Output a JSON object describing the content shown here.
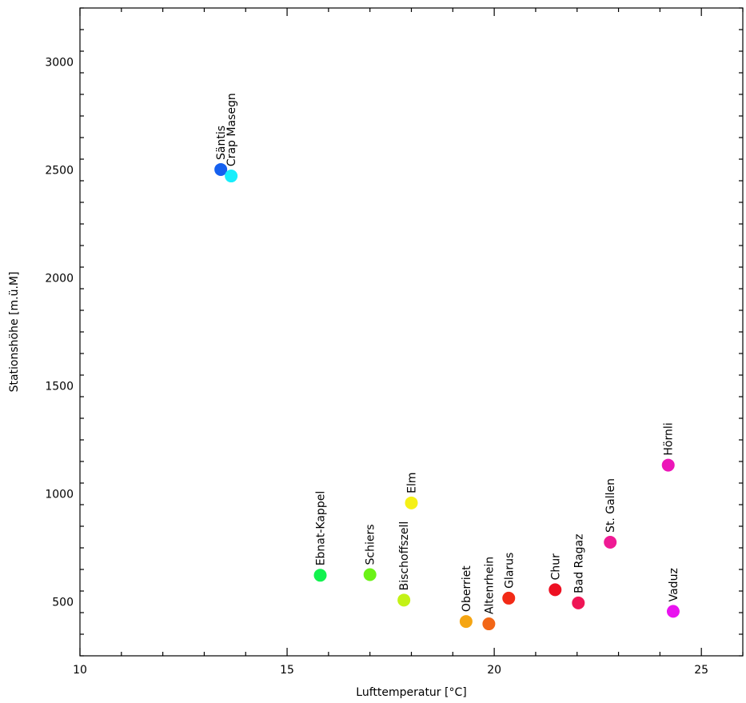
{
  "chart_data": {
    "type": "scatter",
    "title": "",
    "xlabel": "Lufttemperatur [°C]",
    "ylabel": "Stationshöhe [m.ü.M]",
    "xlim": [
      10,
      26
    ],
    "ylim": [
      250,
      3250
    ],
    "x_ticks": [
      "10",
      "15",
      "20",
      "25"
    ],
    "y_ticks": [
      "500",
      "1000",
      "1500",
      "2000",
      "2500",
      "3000"
    ],
    "grid": false,
    "points": [
      {
        "label": "Säntis",
        "x": 13.4,
        "y": 2502,
        "color": "#1560ef"
      },
      {
        "label": "Crap Masegn",
        "x": 13.65,
        "y": 2472,
        "color": "#17eefc"
      },
      {
        "label": "Ebnat-Kappel",
        "x": 15.8,
        "y": 623,
        "color": "#12f24e"
      },
      {
        "label": "Schiers",
        "x": 17.0,
        "y": 626,
        "color": "#6bf217"
      },
      {
        "label": "Bischoffszell",
        "x": 17.82,
        "y": 508,
        "color": "#c3f216"
      },
      {
        "label": "Elm",
        "x": 18.0,
        "y": 958,
        "color": "#f5f016"
      },
      {
        "label": "Oberriet",
        "x": 19.32,
        "y": 409,
        "color": "#f5a512"
      },
      {
        "label": "Altenrhein",
        "x": 19.87,
        "y": 398,
        "color": "#f26617"
      },
      {
        "label": "Glarus",
        "x": 20.35,
        "y": 517,
        "color": "#f22a16"
      },
      {
        "label": "Chur",
        "x": 21.47,
        "y": 556,
        "color": "#ed1022"
      },
      {
        "label": "Bad Ragaz",
        "x": 22.03,
        "y": 495,
        "color": "#ef1555"
      },
      {
        "label": "St. Gallen",
        "x": 22.8,
        "y": 776,
        "color": "#ef1a94"
      },
      {
        "label": "Hörnli",
        "x": 24.2,
        "y": 1133,
        "color": "#ec16b8"
      },
      {
        "label": "Vaduz",
        "x": 24.32,
        "y": 456,
        "color": "#e913ef"
      }
    ]
  }
}
